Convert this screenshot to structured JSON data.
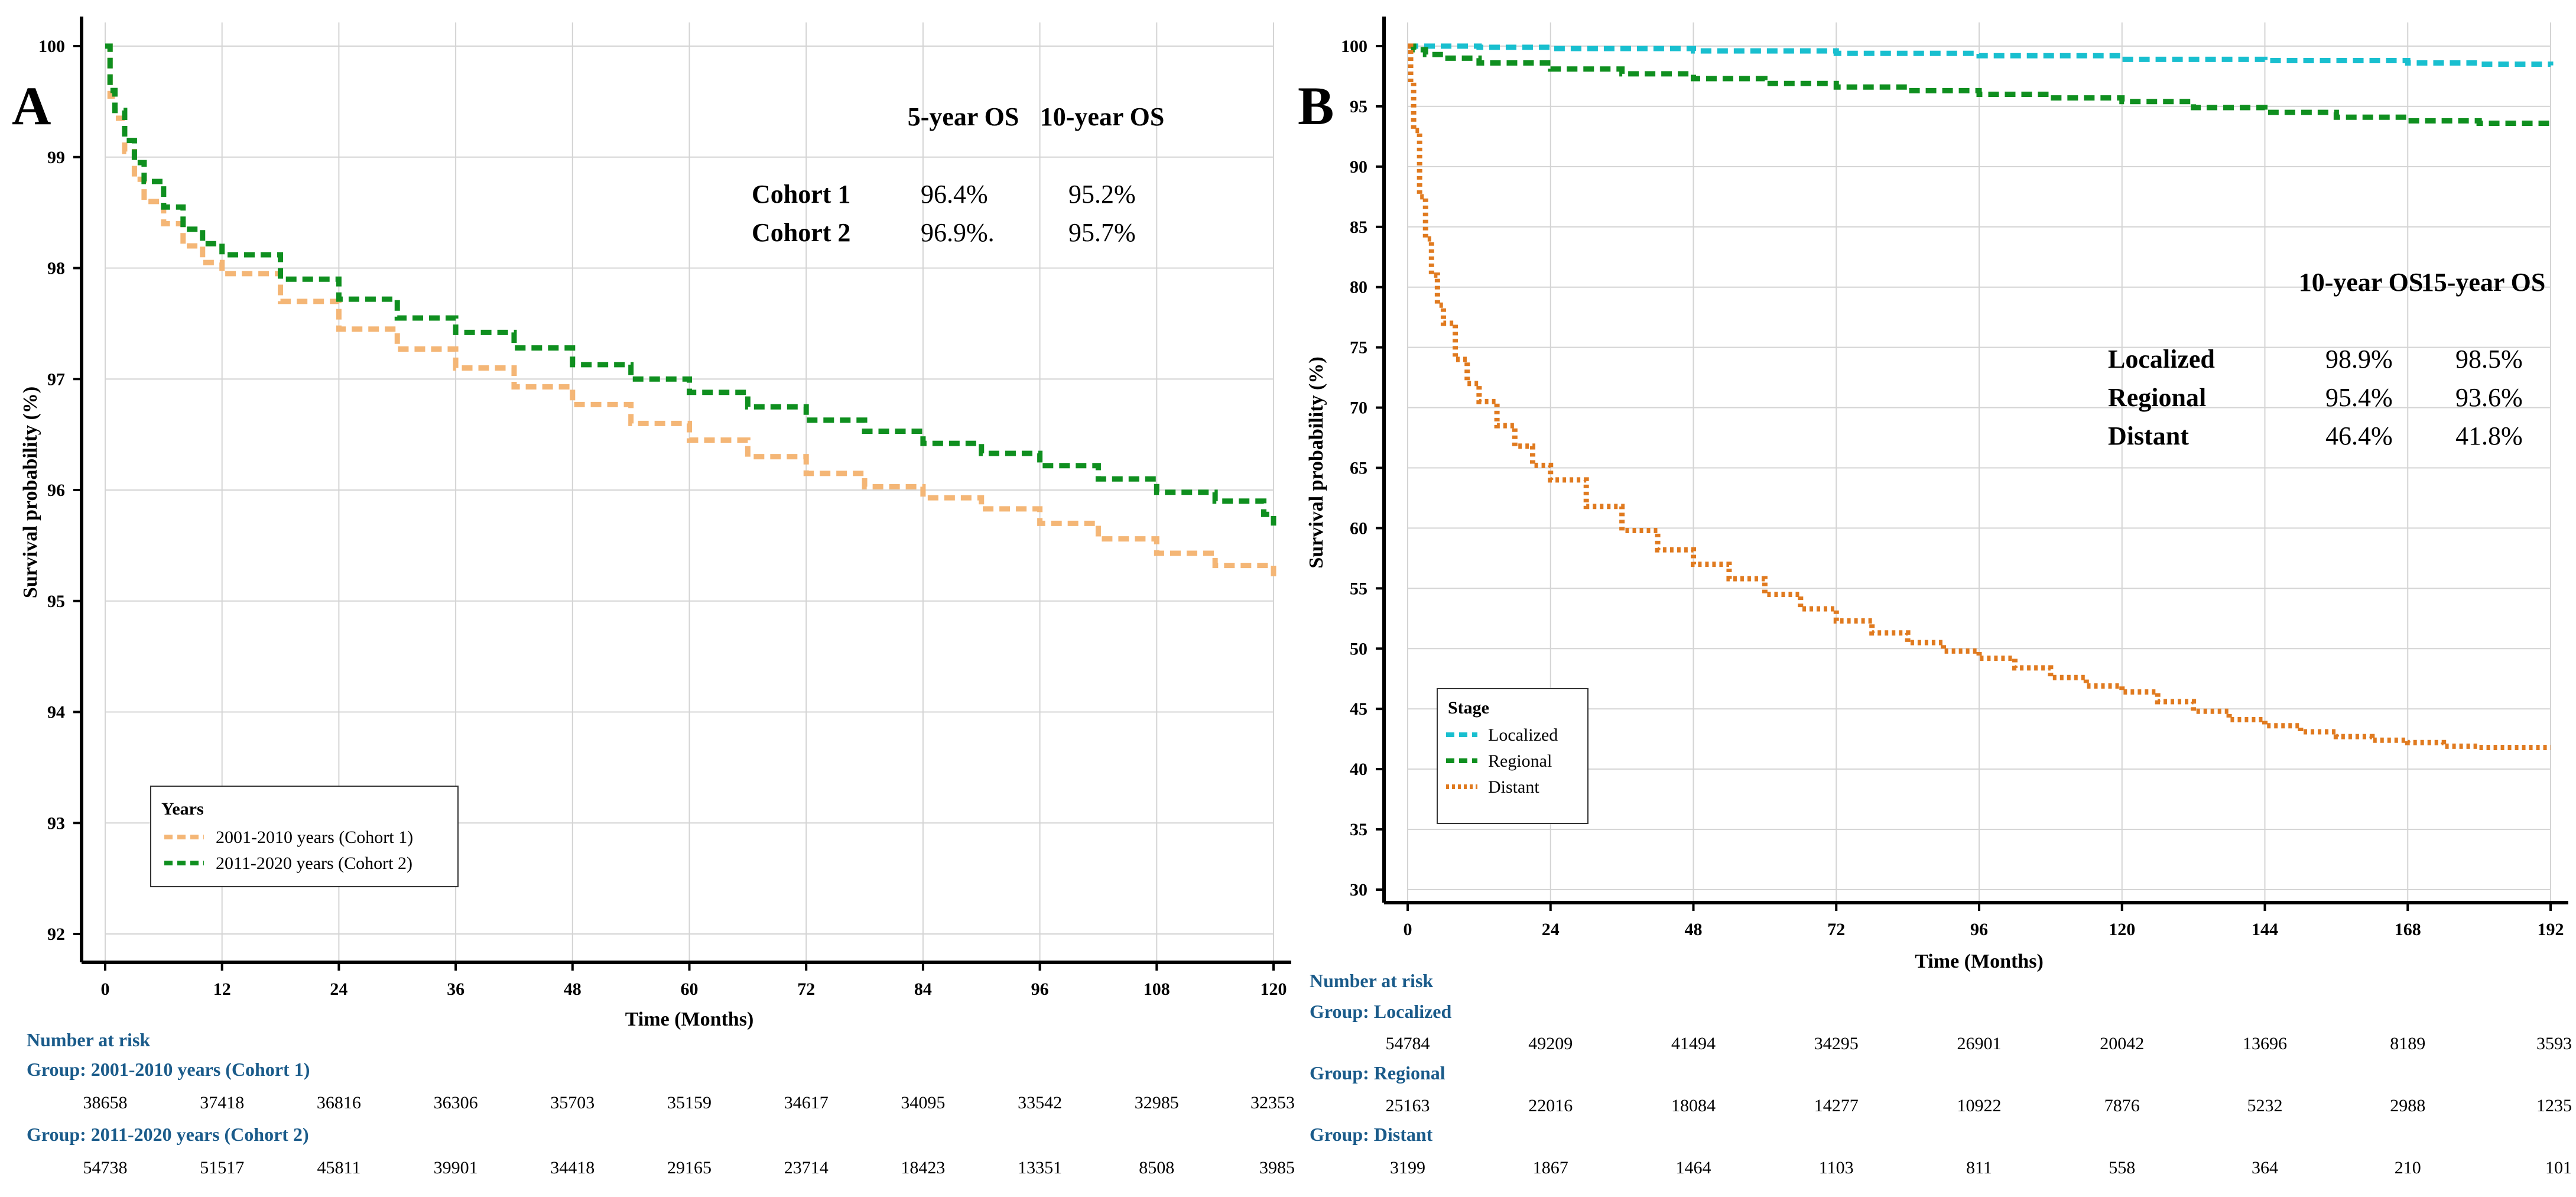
{
  "colors": {
    "cohort1": "#f4b676",
    "cohort2": "#0f8f1f",
    "localized": "#19bfcf",
    "regional": "#0f8f1f",
    "distant": "#e07a1f",
    "risk_text": "#1a5b8a",
    "grid": "#d4d4d4"
  },
  "chart_data": [
    {
      "panel": "A",
      "type": "line",
      "subtype": "kaplan-meier",
      "xlabel": "Time (Months)",
      "ylabel": "Survival probability (%)",
      "xlim": [
        0,
        120
      ],
      "ylim": [
        92,
        100
      ],
      "xticks": [
        0,
        12,
        24,
        36,
        48,
        60,
        72,
        84,
        96,
        108,
        120
      ],
      "yticks": [
        92,
        93,
        94,
        95,
        96,
        97,
        98,
        99,
        100
      ],
      "grid": true,
      "legend": {
        "position": "bottom-left",
        "title": "Years",
        "entries": [
          "2001-2010 years (Cohort 1)",
          "2011-2020 years (Cohort 2)"
        ]
      },
      "series": [
        {
          "name": "2001-2010 years (Cohort 1)",
          "color_key": "cohort1",
          "style": "dash",
          "x": [
            0,
            0.5,
            1,
            2,
            3,
            4,
            6,
            8,
            10,
            12,
            18,
            24,
            30,
            36,
            42,
            48,
            54,
            60,
            66,
            72,
            78,
            84,
            90,
            96,
            102,
            108,
            114,
            120
          ],
          "y": [
            100,
            99.55,
            99.35,
            99.05,
            98.8,
            98.6,
            98.4,
            98.2,
            98.05,
            97.95,
            97.7,
            97.45,
            97.27,
            97.1,
            96.93,
            96.77,
            96.6,
            96.45,
            96.3,
            96.15,
            96.03,
            95.93,
            95.83,
            95.7,
            95.56,
            95.43,
            95.32,
            95.2
          ]
        },
        {
          "name": "2011-2020 years (Cohort 2)",
          "color_key": "cohort2",
          "style": "dash",
          "x": [
            0,
            0.5,
            1,
            2,
            3,
            4,
            6,
            8,
            10,
            12,
            18,
            24,
            30,
            36,
            42,
            48,
            54,
            60,
            66,
            72,
            78,
            84,
            90,
            96,
            102,
            108,
            114,
            119,
            120
          ],
          "y": [
            100,
            99.6,
            99.42,
            99.15,
            98.95,
            98.78,
            98.55,
            98.35,
            98.22,
            98.12,
            97.9,
            97.72,
            97.55,
            97.42,
            97.28,
            97.13,
            97.0,
            96.88,
            96.75,
            96.63,
            96.53,
            96.42,
            96.33,
            96.22,
            96.1,
            95.98,
            95.9,
            95.78,
            95.68
          ]
        }
      ],
      "os_table": {
        "headers": [
          "5-year OS",
          "10-year OS"
        ],
        "rows": [
          {
            "label": "Cohort 1",
            "values": [
              "96.4%",
              "95.2%"
            ]
          },
          {
            "label": "Cohort 2",
            "values": [
              "96.9%.",
              "95.7%"
            ]
          }
        ]
      },
      "risk_table": {
        "title": "Number at risk",
        "groups": [
          {
            "label": "Group: 2001-2010 years (Cohort 1)",
            "values": [
              "38658",
              "37418",
              "36816",
              "36306",
              "35703",
              "35159",
              "34617",
              "34095",
              "33542",
              "32985",
              "32353"
            ]
          },
          {
            "label": "Group: 2011-2020 years (Cohort 2)",
            "values": [
              "54738",
              "51517",
              "45811",
              "39901",
              "34418",
              "29165",
              "23714",
              "18423",
              "13351",
              "8508",
              "3985"
            ]
          }
        ]
      }
    },
    {
      "panel": "B",
      "type": "line",
      "subtype": "kaplan-meier",
      "xlabel": "Time (Months)",
      "ylabel": "Survival probability (%)",
      "xlim": [
        0,
        192
      ],
      "ylim": [
        30,
        100
      ],
      "xticks": [
        0,
        24,
        48,
        72,
        96,
        120,
        144,
        168,
        192
      ],
      "yticks": [
        30,
        35,
        40,
        45,
        50,
        55,
        60,
        65,
        70,
        75,
        80,
        85,
        90,
        95,
        100
      ],
      "grid": true,
      "legend": {
        "position": "bottom-left",
        "title": "Stage",
        "entries": [
          "Localized",
          "Regional",
          "Distant"
        ]
      },
      "series": [
        {
          "name": "Localized",
          "color_key": "localized",
          "style": "dash",
          "x": [
            0,
            12,
            24,
            48,
            72,
            96,
            120,
            144,
            168,
            180,
            192
          ],
          "y": [
            100,
            99.9,
            99.8,
            99.6,
            99.4,
            99.2,
            98.9,
            98.8,
            98.6,
            98.5,
            98.4
          ]
        },
        {
          "name": "Regional",
          "color_key": "regional",
          "style": "dash",
          "x": [
            0,
            1,
            3,
            6,
            12,
            24,
            36,
            48,
            60,
            72,
            84,
            96,
            108,
            120,
            132,
            144,
            156,
            168,
            180,
            192
          ],
          "y": [
            100,
            99.7,
            99.3,
            99.0,
            98.6,
            98.1,
            97.7,
            97.3,
            96.9,
            96.6,
            96.3,
            96.0,
            95.7,
            95.4,
            94.9,
            94.5,
            94.1,
            93.8,
            93.6,
            93.3
          ]
        },
        {
          "name": "Distant",
          "color_key": "distant",
          "style": "dot",
          "x": [
            0,
            0.5,
            1,
            2,
            3,
            4,
            5,
            6,
            8,
            10,
            12,
            15,
            18,
            21,
            24,
            30,
            36,
            42,
            48,
            54,
            60,
            66,
            72,
            78,
            84,
            90,
            96,
            102,
            108,
            114,
            120,
            126,
            132,
            138,
            144,
            150,
            156,
            162,
            168,
            174,
            180,
            186,
            192
          ],
          "y": [
            100,
            97,
            93,
            87.5,
            84,
            81,
            78.5,
            77,
            74,
            72,
            70.5,
            68.5,
            66.8,
            65.2,
            64,
            61.8,
            59.8,
            58.2,
            57,
            55.8,
            54.5,
            53.3,
            52.3,
            51.3,
            50.5,
            49.8,
            49.2,
            48.4,
            47.6,
            46.9,
            46.4,
            45.6,
            44.8,
            44.1,
            43.6,
            43.1,
            42.7,
            42.4,
            42.2,
            41.9,
            41.8,
            41.8,
            41.8
          ]
        }
      ],
      "os_table": {
        "headers": [
          "10-year OS",
          "15-year OS"
        ],
        "rows": [
          {
            "label": "Localized",
            "values": [
              "98.9%",
              "98.5%"
            ]
          },
          {
            "label": "Regional",
            "values": [
              "95.4%",
              "93.6%"
            ]
          },
          {
            "label": "Distant",
            "values": [
              "46.4%",
              "41.8%"
            ]
          }
        ]
      },
      "risk_table": {
        "title": "Number at risk",
        "groups": [
          {
            "label": "Group: Localized",
            "values": [
              "54784",
              "49209",
              "41494",
              "34295",
              "26901",
              "20042",
              "13696",
              "8189",
              "3593"
            ]
          },
          {
            "label": "Group: Regional",
            "values": [
              "25163",
              "22016",
              "18084",
              "14277",
              "10922",
              "7876",
              "5232",
              "2988",
              "1235"
            ]
          },
          {
            "label": "Group: Distant",
            "values": [
              "3199",
              "1867",
              "1464",
              "1103",
              "811",
              "558",
              "364",
              "210",
              "101"
            ]
          }
        ]
      }
    }
  ]
}
